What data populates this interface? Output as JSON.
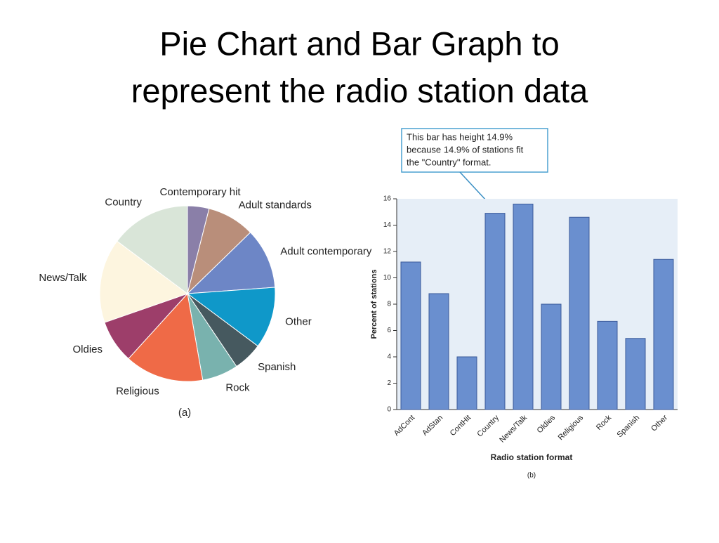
{
  "title_lines": [
    "Pie Chart and Bar Graph to",
    "represent the radio station data"
  ],
  "chart_data": [
    {
      "type": "pie",
      "caption": "(a)",
      "categories": [
        "Contemporary hit",
        "Adult standards",
        "Adult contemporary",
        "Other",
        "Spanish",
        "Rock",
        "Religious",
        "Oldies",
        "News/Talk",
        "Country"
      ],
      "values": [
        4.0,
        8.8,
        11.2,
        11.4,
        5.4,
        6.7,
        14.6,
        8.0,
        15.6,
        14.9
      ],
      "colors": [
        "#8a7fa8",
        "#b98e7a",
        "#6d86c6",
        "#0f98c9",
        "#46595f",
        "#79b2ae",
        "#ef6a47",
        "#9d3e6a",
        "#fdf5df",
        "#d9e5d8"
      ]
    },
    {
      "type": "bar",
      "caption": "(b)",
      "annotation_lines": [
        "This bar has height 14.9%",
        "because 14.9% of stations fit",
        "the \"Country\" format."
      ],
      "x_label": "Radio station format",
      "y_label": "Percent of stations",
      "categories": [
        "AdCont",
        "AdStan",
        "ContHit",
        "Country",
        "News/Talk",
        "Oldies",
        "Religious",
        "Rock",
        "Spanish",
        "Other"
      ],
      "values": [
        11.2,
        8.8,
        4.0,
        14.9,
        15.6,
        8.0,
        14.6,
        6.7,
        5.4,
        11.4
      ],
      "color": "#6a8fcf",
      "ylim": [
        0,
        16
      ],
      "yticks": [
        0,
        2,
        4,
        6,
        8,
        10,
        12,
        14,
        16
      ]
    }
  ]
}
